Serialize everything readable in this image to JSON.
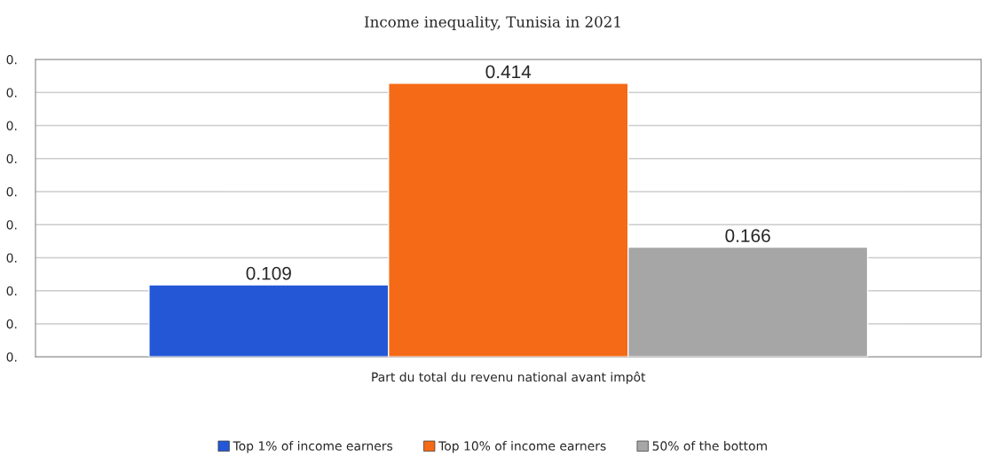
{
  "chart_data": {
    "type": "bar",
    "title": "Income inequality, Tunisia in 2021",
    "categories": [
      "Part du total du revenu national avant impôt"
    ],
    "series": [
      {
        "name": "Top 1% of income earners",
        "color": "#2457d6",
        "values": [
          0.109
        ]
      },
      {
        "name": "Top 10% of income earners",
        "color": "#f56a16",
        "values": [
          0.414
        ]
      },
      {
        "name": "50% of the bottom",
        "color": "#a6a6a6",
        "values": [
          0.166
        ]
      }
    ],
    "ylim": [
      0,
      0.45
    ],
    "yticks": [
      {
        "value": 0,
        "label": "0."
      },
      {
        "value": 0.05,
        "label": "0."
      },
      {
        "value": 0.1,
        "label": "0."
      },
      {
        "value": 0.15,
        "label": "0."
      },
      {
        "value": 0.2,
        "label": "0."
      },
      {
        "value": 0.25,
        "label": "0."
      },
      {
        "value": 0.3,
        "label": "0."
      },
      {
        "value": 0.35,
        "label": "0."
      },
      {
        "value": 0.4,
        "label": "0."
      },
      {
        "value": 0.45,
        "label": "0."
      }
    ],
    "grid": "y",
    "legend": "bottom",
    "data_labels": true
  }
}
